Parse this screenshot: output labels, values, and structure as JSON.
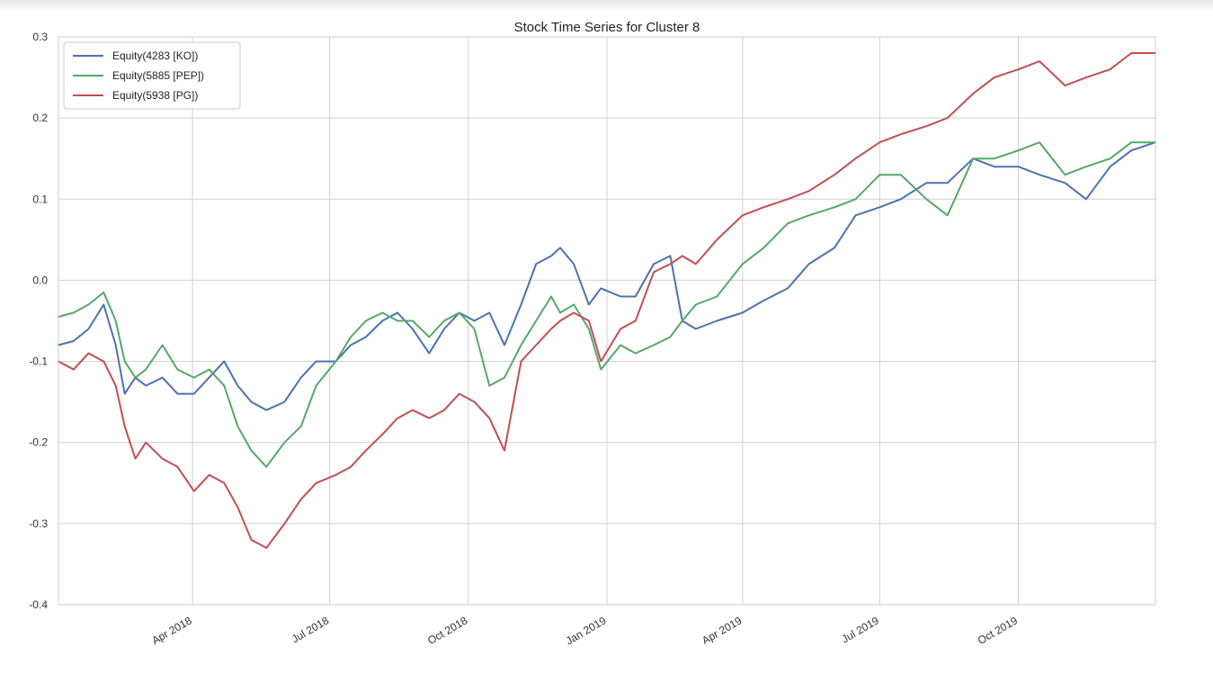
{
  "chart_data": {
    "type": "line",
    "title": "Stock Time Series for Cluster 8",
    "xlabel": "",
    "ylabel": "",
    "x_range": [
      "2018-01-02",
      "2019-12-31"
    ],
    "ylim": [
      -0.4,
      0.3
    ],
    "yticks": [
      "0.3",
      "0.2",
      "0.1",
      "0.0",
      "-0.1",
      "-0.2",
      "-0.3",
      "-0.4"
    ],
    "xticks": [
      {
        "label": "Apr 2018",
        "date": "2018-04-01"
      },
      {
        "label": "Jul 2018",
        "date": "2018-07-01"
      },
      {
        "label": "Oct 2018",
        "date": "2018-10-01"
      },
      {
        "label": "Jan 2019",
        "date": "2019-01-01"
      },
      {
        "label": "Apr 2019",
        "date": "2019-04-01"
      },
      {
        "label": "Jul 2019",
        "date": "2019-07-01"
      },
      {
        "label": "Oct 2019",
        "date": "2019-10-01"
      }
    ],
    "grid": true,
    "legend_position": "top-left",
    "series": [
      {
        "name": "Equity(4283 [KO])",
        "color": "#4c72b0",
        "points": [
          [
            "2018-01-02",
            -0.08
          ],
          [
            "2018-01-12",
            -0.075
          ],
          [
            "2018-01-22",
            -0.06
          ],
          [
            "2018-02-01",
            -0.03
          ],
          [
            "2018-02-09",
            -0.08
          ],
          [
            "2018-02-15",
            -0.14
          ],
          [
            "2018-02-22",
            -0.12
          ],
          [
            "2018-03-01",
            -0.13
          ],
          [
            "2018-03-12",
            -0.12
          ],
          [
            "2018-03-22",
            -0.14
          ],
          [
            "2018-04-02",
            -0.14
          ],
          [
            "2018-04-12",
            -0.12
          ],
          [
            "2018-04-22",
            -0.1
          ],
          [
            "2018-05-01",
            -0.13
          ],
          [
            "2018-05-10",
            -0.15
          ],
          [
            "2018-05-20",
            -0.16
          ],
          [
            "2018-06-01",
            -0.15
          ],
          [
            "2018-06-12",
            -0.12
          ],
          [
            "2018-06-22",
            -0.1
          ],
          [
            "2018-07-05",
            -0.1
          ],
          [
            "2018-07-15",
            -0.08
          ],
          [
            "2018-07-25",
            -0.07
          ],
          [
            "2018-08-05",
            -0.05
          ],
          [
            "2018-08-15",
            -0.04
          ],
          [
            "2018-08-25",
            -0.06
          ],
          [
            "2018-09-05",
            -0.09
          ],
          [
            "2018-09-15",
            -0.06
          ],
          [
            "2018-09-25",
            -0.04
          ],
          [
            "2018-10-05",
            -0.05
          ],
          [
            "2018-10-15",
            -0.04
          ],
          [
            "2018-10-25",
            -0.08
          ],
          [
            "2018-11-05",
            -0.03
          ],
          [
            "2018-11-15",
            0.02
          ],
          [
            "2018-11-25",
            0.03
          ],
          [
            "2018-12-01",
            0.04
          ],
          [
            "2018-12-10",
            0.02
          ],
          [
            "2018-12-20",
            -0.03
          ],
          [
            "2018-12-28",
            -0.01
          ],
          [
            "2019-01-10",
            -0.02
          ],
          [
            "2019-01-20",
            -0.02
          ],
          [
            "2019-02-01",
            0.02
          ],
          [
            "2019-02-12",
            0.03
          ],
          [
            "2019-02-20",
            -0.05
          ],
          [
            "2019-03-01",
            -0.06
          ],
          [
            "2019-03-15",
            -0.05
          ],
          [
            "2019-04-01",
            -0.04
          ],
          [
            "2019-04-15",
            -0.025
          ],
          [
            "2019-05-01",
            -0.01
          ],
          [
            "2019-05-15",
            0.02
          ],
          [
            "2019-06-01",
            0.04
          ],
          [
            "2019-06-15",
            0.08
          ],
          [
            "2019-07-01",
            0.09
          ],
          [
            "2019-07-15",
            0.1
          ],
          [
            "2019-08-01",
            0.12
          ],
          [
            "2019-08-15",
            0.12
          ],
          [
            "2019-09-01",
            0.15
          ],
          [
            "2019-09-15",
            0.14
          ],
          [
            "2019-10-01",
            0.14
          ],
          [
            "2019-10-15",
            0.13
          ],
          [
            "2019-11-01",
            0.12
          ],
          [
            "2019-11-15",
            0.1
          ],
          [
            "2019-12-01",
            0.14
          ],
          [
            "2019-12-15",
            0.16
          ],
          [
            "2019-12-31",
            0.17
          ]
        ]
      },
      {
        "name": "Equity(5885 [PEP])",
        "color": "#55a868",
        "points": [
          [
            "2018-01-02",
            -0.045
          ],
          [
            "2018-01-12",
            -0.04
          ],
          [
            "2018-01-22",
            -0.03
          ],
          [
            "2018-02-01",
            -0.015
          ],
          [
            "2018-02-09",
            -0.05
          ],
          [
            "2018-02-15",
            -0.1
          ],
          [
            "2018-02-22",
            -0.12
          ],
          [
            "2018-03-01",
            -0.11
          ],
          [
            "2018-03-12",
            -0.08
          ],
          [
            "2018-03-22",
            -0.11
          ],
          [
            "2018-04-02",
            -0.12
          ],
          [
            "2018-04-12",
            -0.11
          ],
          [
            "2018-04-22",
            -0.13
          ],
          [
            "2018-05-01",
            -0.18
          ],
          [
            "2018-05-10",
            -0.21
          ],
          [
            "2018-05-20",
            -0.23
          ],
          [
            "2018-06-01",
            -0.2
          ],
          [
            "2018-06-12",
            -0.18
          ],
          [
            "2018-06-22",
            -0.13
          ],
          [
            "2018-07-05",
            -0.1
          ],
          [
            "2018-07-15",
            -0.07
          ],
          [
            "2018-07-25",
            -0.05
          ],
          [
            "2018-08-05",
            -0.04
          ],
          [
            "2018-08-15",
            -0.05
          ],
          [
            "2018-08-25",
            -0.05
          ],
          [
            "2018-09-05",
            -0.07
          ],
          [
            "2018-09-15",
            -0.05
          ],
          [
            "2018-09-25",
            -0.04
          ],
          [
            "2018-10-05",
            -0.06
          ],
          [
            "2018-10-15",
            -0.13
          ],
          [
            "2018-10-25",
            -0.12
          ],
          [
            "2018-11-05",
            -0.08
          ],
          [
            "2018-11-15",
            -0.05
          ],
          [
            "2018-11-25",
            -0.02
          ],
          [
            "2018-12-01",
            -0.04
          ],
          [
            "2018-12-10",
            -0.03
          ],
          [
            "2018-12-20",
            -0.06
          ],
          [
            "2018-12-28",
            -0.11
          ],
          [
            "2019-01-10",
            -0.08
          ],
          [
            "2019-01-20",
            -0.09
          ],
          [
            "2019-02-01",
            -0.08
          ],
          [
            "2019-02-12",
            -0.07
          ],
          [
            "2019-02-20",
            -0.05
          ],
          [
            "2019-03-01",
            -0.03
          ],
          [
            "2019-03-15",
            -0.02
          ],
          [
            "2019-04-01",
            0.02
          ],
          [
            "2019-04-15",
            0.04
          ],
          [
            "2019-05-01",
            0.07
          ],
          [
            "2019-05-15",
            0.08
          ],
          [
            "2019-06-01",
            0.09
          ],
          [
            "2019-06-15",
            0.1
          ],
          [
            "2019-07-01",
            0.13
          ],
          [
            "2019-07-15",
            0.13
          ],
          [
            "2019-08-01",
            0.1
          ],
          [
            "2019-08-15",
            0.08
          ],
          [
            "2019-09-01",
            0.15
          ],
          [
            "2019-09-15",
            0.15
          ],
          [
            "2019-10-01",
            0.16
          ],
          [
            "2019-10-15",
            0.17
          ],
          [
            "2019-11-01",
            0.13
          ],
          [
            "2019-11-15",
            0.14
          ],
          [
            "2019-12-01",
            0.15
          ],
          [
            "2019-12-15",
            0.17
          ],
          [
            "2019-12-31",
            0.17
          ]
        ]
      },
      {
        "name": "Equity(5938 [PG])",
        "color": "#c44e52",
        "points": [
          [
            "2018-01-02",
            -0.1
          ],
          [
            "2018-01-12",
            -0.11
          ],
          [
            "2018-01-22",
            -0.09
          ],
          [
            "2018-02-01",
            -0.1
          ],
          [
            "2018-02-09",
            -0.13
          ],
          [
            "2018-02-15",
            -0.18
          ],
          [
            "2018-02-22",
            -0.22
          ],
          [
            "2018-03-01",
            -0.2
          ],
          [
            "2018-03-12",
            -0.22
          ],
          [
            "2018-03-22",
            -0.23
          ],
          [
            "2018-04-02",
            -0.26
          ],
          [
            "2018-04-12",
            -0.24
          ],
          [
            "2018-04-22",
            -0.25
          ],
          [
            "2018-05-01",
            -0.28
          ],
          [
            "2018-05-10",
            -0.32
          ],
          [
            "2018-05-20",
            -0.33
          ],
          [
            "2018-06-01",
            -0.3
          ],
          [
            "2018-06-12",
            -0.27
          ],
          [
            "2018-06-22",
            -0.25
          ],
          [
            "2018-07-05",
            -0.24
          ],
          [
            "2018-07-15",
            -0.23
          ],
          [
            "2018-07-25",
            -0.21
          ],
          [
            "2018-08-05",
            -0.19
          ],
          [
            "2018-08-15",
            -0.17
          ],
          [
            "2018-08-25",
            -0.16
          ],
          [
            "2018-09-05",
            -0.17
          ],
          [
            "2018-09-15",
            -0.16
          ],
          [
            "2018-09-25",
            -0.14
          ],
          [
            "2018-10-05",
            -0.15
          ],
          [
            "2018-10-15",
            -0.17
          ],
          [
            "2018-10-25",
            -0.21
          ],
          [
            "2018-11-05",
            -0.1
          ],
          [
            "2018-11-15",
            -0.08
          ],
          [
            "2018-11-25",
            -0.06
          ],
          [
            "2018-12-01",
            -0.05
          ],
          [
            "2018-12-10",
            -0.04
          ],
          [
            "2018-12-20",
            -0.05
          ],
          [
            "2018-12-28",
            -0.1
          ],
          [
            "2019-01-10",
            -0.06
          ],
          [
            "2019-01-20",
            -0.05
          ],
          [
            "2019-02-01",
            0.01
          ],
          [
            "2019-02-12",
            0.02
          ],
          [
            "2019-02-20",
            0.03
          ],
          [
            "2019-03-01",
            0.02
          ],
          [
            "2019-03-15",
            0.05
          ],
          [
            "2019-04-01",
            0.08
          ],
          [
            "2019-04-15",
            0.09
          ],
          [
            "2019-05-01",
            0.1
          ],
          [
            "2019-05-15",
            0.11
          ],
          [
            "2019-06-01",
            0.13
          ],
          [
            "2019-06-15",
            0.15
          ],
          [
            "2019-07-01",
            0.17
          ],
          [
            "2019-07-15",
            0.18
          ],
          [
            "2019-08-01",
            0.19
          ],
          [
            "2019-08-15",
            0.2
          ],
          [
            "2019-09-01",
            0.23
          ],
          [
            "2019-09-15",
            0.25
          ],
          [
            "2019-10-01",
            0.26
          ],
          [
            "2019-10-15",
            0.27
          ],
          [
            "2019-11-01",
            0.24
          ],
          [
            "2019-11-15",
            0.25
          ],
          [
            "2019-12-01",
            0.26
          ],
          [
            "2019-12-15",
            0.28
          ],
          [
            "2019-12-31",
            0.28
          ]
        ]
      }
    ]
  }
}
